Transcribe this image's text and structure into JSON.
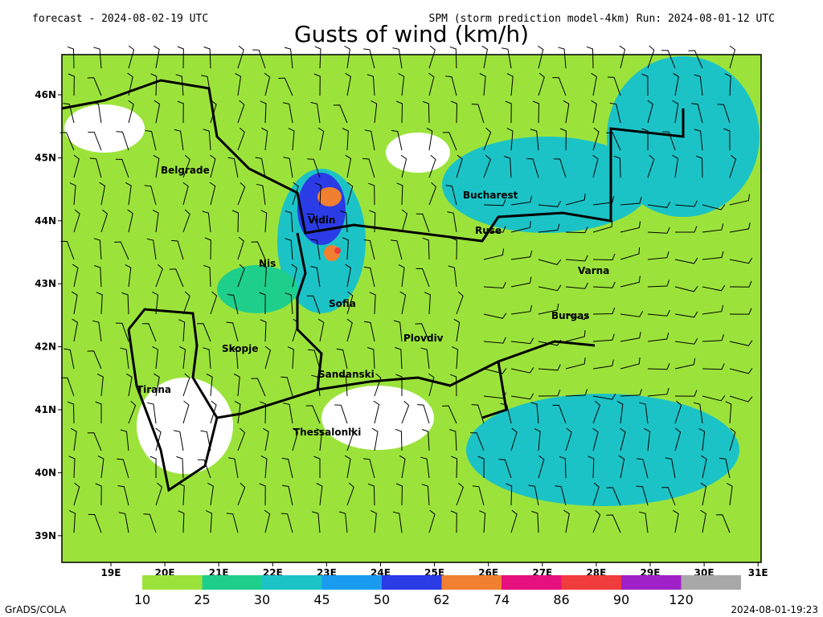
{
  "header": {
    "left": "forecast - 2024-08-02-19 UTC",
    "right": "SPM (storm prediction model-4km) Run: 2024-08-01-12 UTC",
    "title": "Gusts of wind (km/h)"
  },
  "map": {
    "lat_labels": [
      "46N",
      "45N",
      "44N",
      "43N",
      "42N",
      "41N",
      "40N",
      "39N"
    ],
    "lon_labels": [
      "19E",
      "20E",
      "21E",
      "22E",
      "23E",
      "24E",
      "25E",
      "26E",
      "27E",
      "28E",
      "29E",
      "30E",
      "31E"
    ],
    "cities": [
      "Belgrade",
      "Bucharest",
      "Vidin",
      "Ruse",
      "Nis",
      "Varna",
      "Sofia",
      "Burgas",
      "Skopje",
      "Plovdiv",
      "Sandanski",
      "Tirana",
      "Thessaloniki"
    ]
  },
  "colorbar": {
    "labels": [
      "10",
      "25",
      "30",
      "45",
      "50",
      "62",
      "74",
      "86",
      "90",
      "120"
    ],
    "colors": [
      "#9be33b",
      "#1ecf8c",
      "#1cc3c6",
      "#199cf0",
      "#2b3be6",
      "#f08030",
      "#e6107f",
      "#f03c3c",
      "#a020c8",
      "#a8a8a8"
    ]
  },
  "footer": {
    "left": "GrADS/COLA",
    "right": "2024-08-01-19:23"
  }
}
